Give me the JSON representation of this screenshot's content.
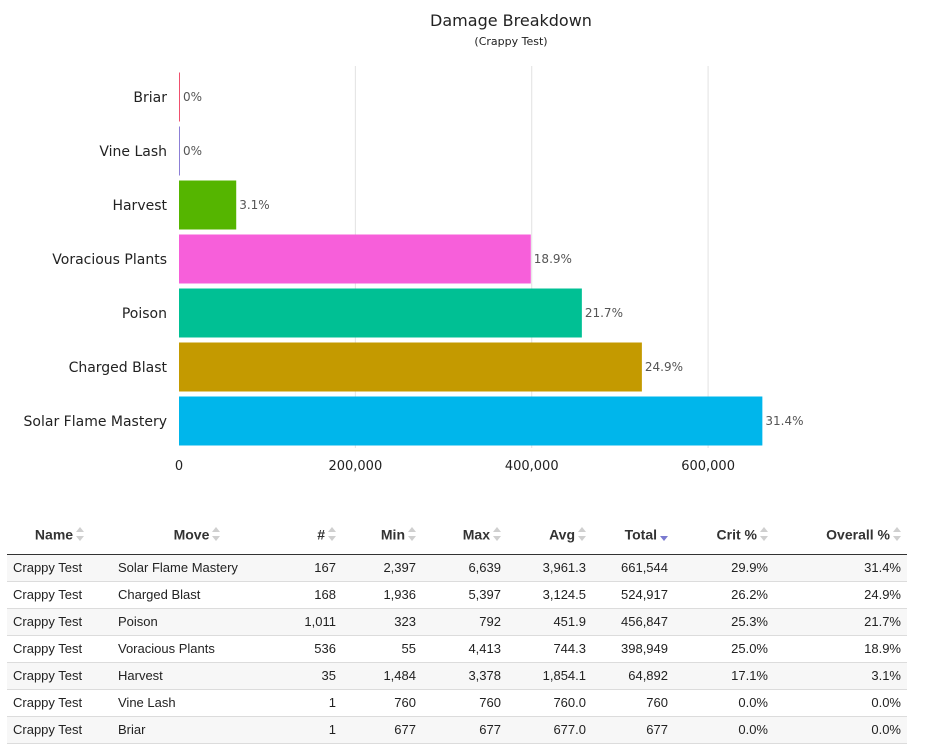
{
  "chart_data": {
    "type": "bar",
    "orientation": "horizontal",
    "title": "Damage Breakdown",
    "subtitle": "(Crappy Test)",
    "categories": [
      "Briar",
      "Vine Lash",
      "Harvest",
      "Voracious Plants",
      "Poison",
      "Charged Blast",
      "Solar Flame Mastery"
    ],
    "values": [
      677,
      760,
      64892,
      398949,
      456847,
      524917,
      661544
    ],
    "labels": [
      "0%",
      "0%",
      "3.1%",
      "18.9%",
      "21.7%",
      "24.9%",
      "31.4%"
    ],
    "colors": [
      "#f0506e",
      "#8c7fd6",
      "#55b500",
      "#f75fda",
      "#00c094",
      "#c49a00",
      "#00b6eb"
    ],
    "xlim": [
      0,
      660000
    ],
    "xticks": [
      0,
      200000,
      400000,
      600000
    ],
    "xtick_labels": [
      "0",
      "200,000",
      "400,000",
      "600,000"
    ],
    "xlabel": "",
    "ylabel": "",
    "grid": true
  },
  "table": {
    "columns": [
      {
        "label": "Name",
        "sort": "none"
      },
      {
        "label": "Move",
        "sort": "none"
      },
      {
        "label": "#",
        "sort": "none"
      },
      {
        "label": "Min",
        "sort": "none"
      },
      {
        "label": "Max",
        "sort": "none"
      },
      {
        "label": "Avg",
        "sort": "none"
      },
      {
        "label": "Total",
        "sort": "desc"
      },
      {
        "label": "Crit %",
        "sort": "none"
      },
      {
        "label": "Overall %",
        "sort": "none"
      }
    ],
    "rows": [
      [
        "Crappy Test",
        "Solar Flame Mastery",
        "167",
        "2,397",
        "6,639",
        "3,961.3",
        "661,544",
        "29.9%",
        "31.4%"
      ],
      [
        "Crappy Test",
        "Charged Blast",
        "168",
        "1,936",
        "5,397",
        "3,124.5",
        "524,917",
        "26.2%",
        "24.9%"
      ],
      [
        "Crappy Test",
        "Poison",
        "1,011",
        "323",
        "792",
        "451.9",
        "456,847",
        "25.3%",
        "21.7%"
      ],
      [
        "Crappy Test",
        "Voracious Plants",
        "536",
        "55",
        "4,413",
        "744.3",
        "398,949",
        "25.0%",
        "18.9%"
      ],
      [
        "Crappy Test",
        "Harvest",
        "35",
        "1,484",
        "3,378",
        "1,854.1",
        "64,892",
        "17.1%",
        "3.1%"
      ],
      [
        "Crappy Test",
        "Vine Lash",
        "1",
        "760",
        "760",
        "760.0",
        "760",
        "0.0%",
        "0.0%"
      ],
      [
        "Crappy Test",
        "Briar",
        "1",
        "677",
        "677",
        "677.0",
        "677",
        "0.0%",
        "0.0%"
      ]
    ]
  }
}
